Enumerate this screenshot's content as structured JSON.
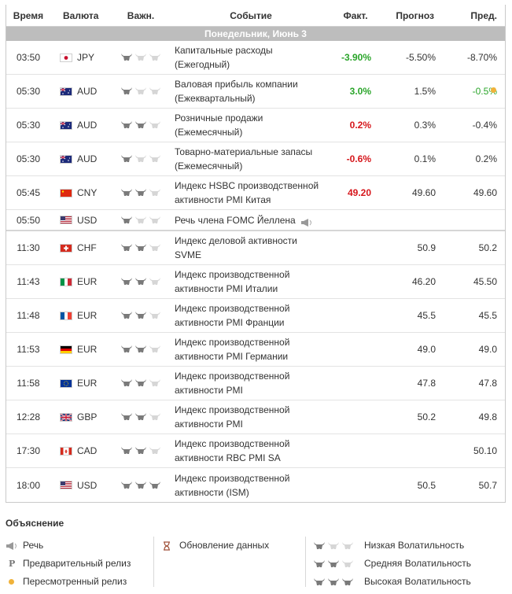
{
  "columns": {
    "time": "Время",
    "currency": "Валюта",
    "importance": "Важн.",
    "event": "Событие",
    "actual": "Факт.",
    "forecast": "Прогноз",
    "previous": "Пред."
  },
  "day_label": "Понедельник, Июнь 3",
  "colors": {
    "green": "#2aa52a",
    "red": "#d6161b",
    "bull_on": "#7a7a7a",
    "bull_off": "#d6d6d6",
    "day_bg": "#bdbdbd",
    "revised": "#f0b23a"
  },
  "events": [
    {
      "time": "03:50",
      "currency": "JPY",
      "flag": "jp",
      "importance": 1,
      "event_line1": "Капитальные расходы",
      "event_line2": "(Ежегодный)",
      "actual": "-3.90%",
      "actual_color": "green",
      "forecast": "-5.50%",
      "previous": "-8.70%"
    },
    {
      "time": "05:30",
      "currency": "AUD",
      "flag": "au",
      "importance": 1,
      "event_line1": "Валовая прибыль компании",
      "event_line2": "(Ежеквартальный)",
      "actual": "3.0%",
      "actual_color": "green",
      "forecast": "1.5%",
      "previous": "-0.5%",
      "previous_color": "green",
      "revised": true
    },
    {
      "time": "05:30",
      "currency": "AUD",
      "flag": "au",
      "importance": 2,
      "event_line1": "Розничные продажи",
      "event_line2": "(Ежемесячный)",
      "actual": "0.2%",
      "actual_color": "red",
      "forecast": "0.3%",
      "previous": "-0.4%"
    },
    {
      "time": "05:30",
      "currency": "AUD",
      "flag": "au",
      "importance": 1,
      "event_line1": "Товарно-материальные запасы",
      "event_line2": "(Ежемесячный)",
      "actual": "-0.6%",
      "actual_color": "red",
      "forecast": "0.1%",
      "previous": "0.2%"
    },
    {
      "time": "05:45",
      "currency": "CNY",
      "flag": "cn",
      "importance": 2,
      "event_line1": "Индекс HSBC производственной",
      "event_line2": "активности PMI Китая",
      "actual": "49.20",
      "actual_color": "red",
      "forecast": "49.60",
      "previous": "49.60"
    },
    {
      "time": "05:50",
      "currency": "USD",
      "flag": "us",
      "importance": 1,
      "event_line1": "Речь члена FOMC Йеллена",
      "event_line2": "",
      "actual": "",
      "forecast": "",
      "previous": "",
      "speech": true,
      "single": true,
      "sep": true
    },
    {
      "time": "11:30",
      "currency": "CHF",
      "flag": "ch",
      "importance": 2,
      "event_line1": "Индекс деловой активности",
      "event_line2": "SVME",
      "actual": "",
      "forecast": "50.9",
      "previous": "50.2"
    },
    {
      "time": "11:43",
      "currency": "EUR",
      "flag": "it",
      "importance": 2,
      "event_line1": "Индекс производственной",
      "event_line2": "активности PMI Италии",
      "actual": "",
      "forecast": "46.20",
      "previous": "45.50"
    },
    {
      "time": "11:48",
      "currency": "EUR",
      "flag": "fr",
      "importance": 2,
      "event_line1": "Индекс производственной",
      "event_line2": "активности PMI Франции",
      "actual": "",
      "forecast": "45.5",
      "previous": "45.5"
    },
    {
      "time": "11:53",
      "currency": "EUR",
      "flag": "de",
      "importance": 2,
      "event_line1": "Индекс производственной",
      "event_line2": "активности PMI Германии",
      "actual": "",
      "forecast": "49.0",
      "previous": "49.0"
    },
    {
      "time": "11:58",
      "currency": "EUR",
      "flag": "eu",
      "importance": 2,
      "event_line1": "Индекс производственной",
      "event_line2": "активности PMI",
      "actual": "",
      "forecast": "47.8",
      "previous": "47.8"
    },
    {
      "time": "12:28",
      "currency": "GBP",
      "flag": "gb",
      "importance": 2,
      "event_line1": "Индекс производственной",
      "event_line2": "активности PMI",
      "actual": "",
      "forecast": "50.2",
      "previous": "49.8"
    },
    {
      "time": "17:30",
      "currency": "CAD",
      "flag": "ca",
      "importance": 2,
      "event_line1": "Индекс производственной",
      "event_line2": "активности RBC PMI SA",
      "actual": "",
      "forecast": "",
      "previous": "50.10"
    },
    {
      "time": "18:00",
      "currency": "USD",
      "flag": "us",
      "importance": 3,
      "event_line1": "Индекс производственной",
      "event_line2": "активности (ISM)",
      "actual": "",
      "forecast": "50.5",
      "previous": "50.7"
    }
  ],
  "legend": {
    "title": "Объяснение",
    "speech": "Речь",
    "preliminary": "Предварительный релиз",
    "revised": "Пересмотренный релиз",
    "update": "Обновление данных",
    "low": "Низкая Волатильность",
    "medium": "Средняя Волатильность",
    "high": "Высокая Волатильность"
  }
}
